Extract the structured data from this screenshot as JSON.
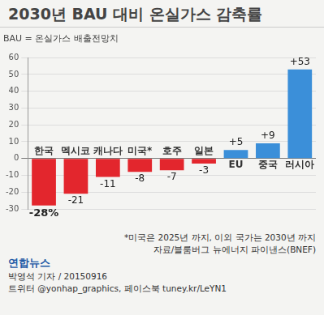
{
  "chart_data": {
    "type": "bar",
    "title": "2030년 BAU 대비 온실가스 감축률",
    "subtitle": "BAU = 온실가스 배출전망치",
    "categories": [
      "한국",
      "멕시코",
      "캐나다",
      "미국*",
      "호주",
      "일본",
      "EU",
      "중국",
      "러시아"
    ],
    "values": [
      -28,
      -21,
      -11,
      -8,
      -7,
      -3,
      5,
      9,
      53
    ],
    "value_labels": [
      "-28%",
      "-21",
      "-11",
      "-8",
      "-7",
      "-3",
      "+5",
      "+9",
      "+53"
    ],
    "colors": [
      "#e3262d",
      "#e3262d",
      "#e3262d",
      "#e3262d",
      "#e3262d",
      "#e3262d",
      "#3b8fd9",
      "#3b8fd9",
      "#3b8fd9"
    ],
    "ylim": [
      -30,
      60
    ],
    "yticks": [
      -30,
      -20,
      -10,
      0,
      10,
      20,
      30,
      40,
      50,
      60
    ],
    "grid": true,
    "data_labels": true,
    "note": "*미국은 2025년 까지, 이외 국가는 2030년 까지",
    "source": "자료/블룸버그 뉴에너지 파이낸스(BNEF)",
    "publisher": "연합뉴스",
    "byline": "박영석 기자 / 20150916",
    "social": "트위터 @yonhap_graphics, 페이스북 tuney.kr/LeYN1"
  }
}
